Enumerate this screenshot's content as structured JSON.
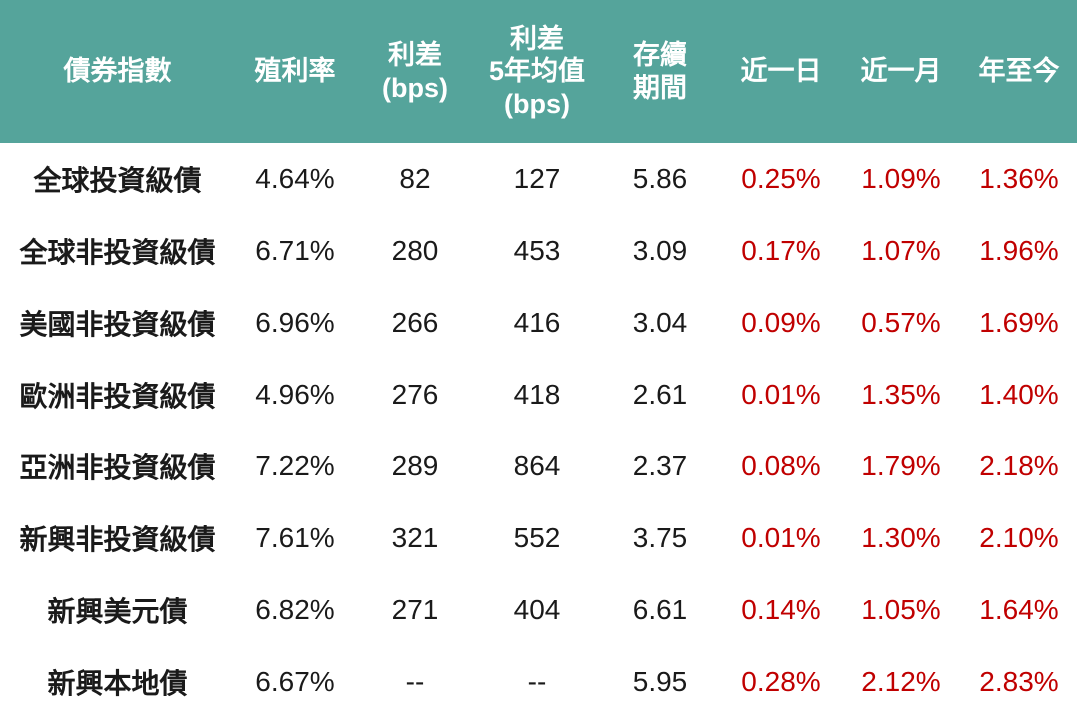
{
  "colors": {
    "header_bg": "#55a49b",
    "header_text": "#ffffff",
    "body_text": "#1a1a1a",
    "return_red": "#c00000"
  },
  "chart_data": {
    "type": "table",
    "columns": [
      "債券指數",
      "殖利率",
      "利差\n(bps)",
      "利差\n5年均值\n(bps)",
      "存續\n期間",
      "近一日",
      "近一月",
      "年至今"
    ],
    "rows": [
      {
        "index_name": "全球投資級債",
        "yield": "4.64%",
        "spread_bps": "82",
        "spread_5y_avg_bps": "127",
        "duration": "5.86",
        "d1": "0.25%",
        "m1": "1.09%",
        "ytd": "1.36%"
      },
      {
        "index_name": "全球非投資級債",
        "yield": "6.71%",
        "spread_bps": "280",
        "spread_5y_avg_bps": "453",
        "duration": "3.09",
        "d1": "0.17%",
        "m1": "1.07%",
        "ytd": "1.96%"
      },
      {
        "index_name": "美國非投資級債",
        "yield": "6.96%",
        "spread_bps": "266",
        "spread_5y_avg_bps": "416",
        "duration": "3.04",
        "d1": "0.09%",
        "m1": "0.57%",
        "ytd": "1.69%"
      },
      {
        "index_name": "歐洲非投資級債",
        "yield": "4.96%",
        "spread_bps": "276",
        "spread_5y_avg_bps": "418",
        "duration": "2.61",
        "d1": "0.01%",
        "m1": "1.35%",
        "ytd": "1.40%"
      },
      {
        "index_name": "亞洲非投資級債",
        "yield": "7.22%",
        "spread_bps": "289",
        "spread_5y_avg_bps": "864",
        "duration": "2.37",
        "d1": "0.08%",
        "m1": "1.79%",
        "ytd": "2.18%"
      },
      {
        "index_name": "新興非投資級債",
        "yield": "7.61%",
        "spread_bps": "321",
        "spread_5y_avg_bps": "552",
        "duration": "3.75",
        "d1": "0.01%",
        "m1": "1.30%",
        "ytd": "2.10%"
      },
      {
        "index_name": "新興美元債",
        "yield": "6.82%",
        "spread_bps": "271",
        "spread_5y_avg_bps": "404",
        "duration": "6.61",
        "d1": "0.14%",
        "m1": "1.05%",
        "ytd": "1.64%"
      },
      {
        "index_name": "新興本地債",
        "yield": "6.67%",
        "spread_bps": "--",
        "spread_5y_avg_bps": "--",
        "duration": "5.95",
        "d1": "0.28%",
        "m1": "2.12%",
        "ytd": "2.83%"
      }
    ]
  }
}
